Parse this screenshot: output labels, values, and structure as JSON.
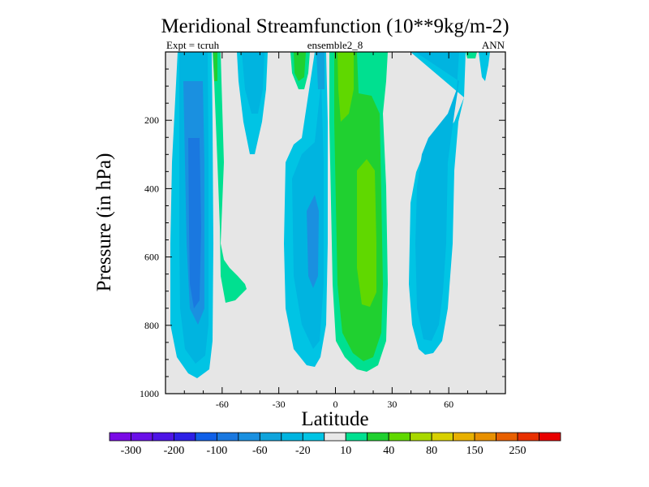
{
  "chart_data": {
    "type": "contour",
    "title": "Meridional Streamfunction (10**9kg/m-2)",
    "subtitle_left": "Expt = tcruh",
    "subtitle_center": "ensemble2_8",
    "subtitle_right": "ANN",
    "xlabel": "Latitude",
    "ylabel": "Pressure (in hPa)",
    "xlim": [
      -90,
      90
    ],
    "ylim": [
      0,
      1000
    ],
    "x_ticks": [
      -60,
      -30,
      0,
      30,
      60
    ],
    "y_ticks": [
      200,
      400,
      600,
      800,
      1000
    ],
    "background_color": "#e6e6e6",
    "colorbar": {
      "colors": [
        "#7a0ae6",
        "#6a10e8",
        "#4e15e6",
        "#2d20e6",
        "#1060e8",
        "#1a78e0",
        "#1a90e0",
        "#10a4dc",
        "#00b4e0",
        "#00c4e4",
        "#e8e8e8",
        "#00e090",
        "#20d030",
        "#60d800",
        "#a8d800",
        "#d8d000",
        "#e8b000",
        "#e89000",
        "#e86000",
        "#e83000",
        "#e80000"
      ],
      "tick_labels": [
        "-300",
        "-200",
        "-100",
        "-60",
        "-20",
        "10",
        "40",
        "80",
        "150",
        "250"
      ]
    },
    "features": [
      {
        "name": "sh-ferrel-cell",
        "sign": "negative",
        "lat_range": [
          -80,
          -60
        ],
        "p_range": [
          0,
          960
        ],
        "min_level": -100
      },
      {
        "name": "sh-polar-tongue",
        "sign": "positive",
        "lat_range": [
          -62,
          -45
        ],
        "p_range": [
          0,
          730
        ],
        "max_level": 10
      },
      {
        "name": "sh-mid-cell",
        "sign": "negative",
        "lat_range": [
          -52,
          -38
        ],
        "p_range": [
          0,
          300
        ],
        "min_level": -20
      },
      {
        "name": "sh-hadley-cell",
        "sign": "negative",
        "lat_range": [
          -28,
          -5
        ],
        "p_range": [
          0,
          960
        ],
        "min_level": -60
      },
      {
        "name": "nh-hadley-cell",
        "sign": "positive",
        "lat_range": [
          0,
          25
        ],
        "p_range": [
          0,
          940
        ],
        "max_level": 40
      },
      {
        "name": "nh-ferrel-cell",
        "sign": "negative",
        "lat_range": [
          38,
          65
        ],
        "p_range": [
          0,
          890
        ],
        "min_level": -60
      },
      {
        "name": "nh-polar-cell",
        "sign": "negative",
        "lat_range": [
          73,
          80
        ],
        "p_range": [
          0,
          90
        ],
        "min_level": -20
      }
    ]
  }
}
